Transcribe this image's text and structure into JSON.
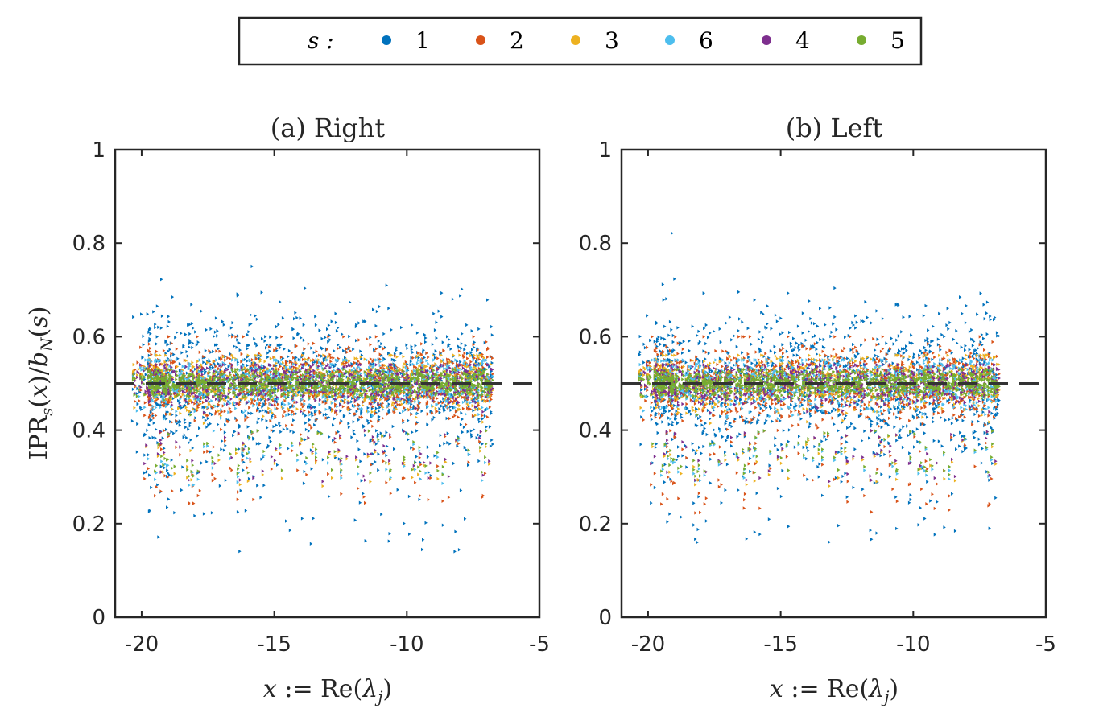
{
  "chart_data": [
    {
      "type": "scatter",
      "title": "(a) Right",
      "xlabel": "x := Re(λ_j)",
      "ylabel": "IPR_s(x)/b_N(s)",
      "xlim": [
        -21,
        -5
      ],
      "ylim": [
        0,
        1
      ],
      "xticks": [
        "-20",
        "-15",
        "-10",
        "-5"
      ],
      "yticks": [
        "0",
        "0.2",
        "0.4",
        "0.6",
        "0.8",
        "1"
      ],
      "reference_line": {
        "y": 0.5,
        "style": "dashed",
        "color": "#333333"
      },
      "x_range_of_points": [
        -21,
        -6.8
      ],
      "series": [
        {
          "name": "1",
          "color": "#0072BD",
          "center": 0.5,
          "spread": [
            0.14,
            0.83
          ]
        },
        {
          "name": "2",
          "color": "#D95319",
          "center": 0.5,
          "spread": [
            0.24,
            0.6
          ]
        },
        {
          "name": "3",
          "color": "#EDB120",
          "center": 0.5,
          "spread": [
            0.28,
            0.56
          ]
        },
        {
          "name": "6",
          "color": "#4DBEEE",
          "center": 0.5,
          "spread": [
            0.28,
            0.55
          ]
        },
        {
          "name": "4",
          "color": "#7E2F8E",
          "center": 0.5,
          "spread": [
            0.29,
            0.54
          ]
        },
        {
          "name": "5",
          "color": "#77AC30",
          "center": 0.5,
          "spread": [
            0.3,
            0.53
          ]
        }
      ]
    },
    {
      "type": "scatter",
      "title": "(b) Left",
      "xlabel": "x := Re(λ_j)",
      "ylabel": "",
      "xlim": [
        -21,
        -5
      ],
      "ylim": [
        0,
        1
      ],
      "xticks": [
        "-20",
        "-15",
        "-10",
        "-5"
      ],
      "yticks": [
        "0",
        "0.2",
        "0.4",
        "0.6",
        "0.8",
        "1"
      ],
      "reference_line": {
        "y": 0.5,
        "style": "dashed",
        "color": "#333333"
      },
      "x_range_of_points": [
        -21,
        -6.8
      ],
      "series": [
        {
          "name": "1",
          "color": "#0072BD",
          "center": 0.5,
          "spread": [
            0.16,
            0.84
          ]
        },
        {
          "name": "2",
          "color": "#D95319",
          "center": 0.5,
          "spread": [
            0.22,
            0.6
          ]
        },
        {
          "name": "3",
          "color": "#EDB120",
          "center": 0.5,
          "spread": [
            0.28,
            0.56
          ]
        },
        {
          "name": "6",
          "color": "#4DBEEE",
          "center": 0.5,
          "spread": [
            0.29,
            0.55
          ]
        },
        {
          "name": "4",
          "color": "#7E2F8E",
          "center": 0.5,
          "spread": [
            0.29,
            0.54
          ]
        },
        {
          "name": "5",
          "color": "#77AC30",
          "center": 0.5,
          "spread": [
            0.3,
            0.53
          ]
        }
      ]
    }
  ],
  "legend": {
    "prefix": "s :",
    "placement": "top-center",
    "entries": [
      "1",
      "2",
      "3",
      "6",
      "4",
      "5"
    ]
  }
}
